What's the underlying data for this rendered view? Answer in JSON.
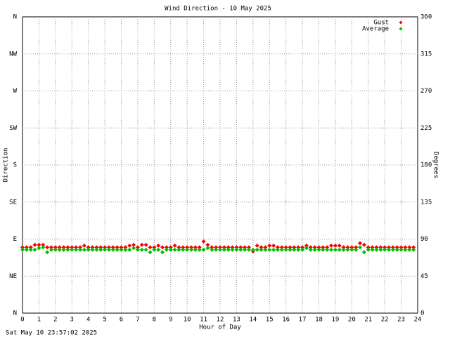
{
  "chart_data": {
    "type": "scatter",
    "title": "Wind Direction - 10 May 2025",
    "x_label": "Hour of Day",
    "y_label": "Direction",
    "y2_label": "Degrees",
    "footer": "Sat May 10 23:57:02 2025",
    "xlim": [
      0,
      24
    ],
    "xticks": [
      0,
      1,
      2,
      3,
      4,
      5,
      6,
      7,
      8,
      9,
      10,
      11,
      12,
      13,
      14,
      15,
      16,
      17,
      18,
      19,
      20,
      21,
      22,
      23,
      24
    ],
    "ylim": [
      0,
      360
    ],
    "yticks": [
      {
        "value": 0,
        "label": "N"
      },
      {
        "value": 45,
        "label": "NE"
      },
      {
        "value": 90,
        "label": "E"
      },
      {
        "value": 135,
        "label": "SE"
      },
      {
        "value": 180,
        "label": "S"
      },
      {
        "value": 225,
        "label": "SW"
      },
      {
        "value": 270,
        "label": "W"
      },
      {
        "value": 315,
        "label": "NW"
      },
      {
        "value": 360,
        "label": "N"
      }
    ],
    "y2lim": [
      0,
      360
    ],
    "y2ticks": [
      0,
      45,
      90,
      135,
      180,
      225,
      270,
      315,
      360
    ],
    "grid": true,
    "legend": "top-right",
    "x": [
      0,
      0.25,
      0.5,
      0.75,
      1,
      1.25,
      1.5,
      1.75,
      2,
      2.25,
      2.5,
      2.75,
      3,
      3.25,
      3.5,
      3.75,
      4,
      4.25,
      4.5,
      4.75,
      5,
      5.25,
      5.5,
      5.75,
      6,
      6.25,
      6.5,
      6.75,
      7,
      7.25,
      7.5,
      7.75,
      8,
      8.25,
      8.5,
      8.75,
      9,
      9.25,
      9.5,
      9.75,
      10,
      10.25,
      10.5,
      10.75,
      11,
      11.25,
      11.5,
      11.75,
      12,
      12.25,
      12.5,
      12.75,
      13,
      13.25,
      13.5,
      13.75,
      14,
      14.25,
      14.5,
      14.75,
      15,
      15.25,
      15.5,
      15.75,
      16,
      16.25,
      16.5,
      16.75,
      17,
      17.25,
      17.5,
      17.75,
      18,
      18.25,
      18.5,
      18.75,
      19,
      19.25,
      19.5,
      19.75,
      20,
      20.25,
      20.5,
      20.75,
      21,
      21.25,
      21.5,
      21.75,
      22,
      22.25,
      22.5,
      22.75,
      23,
      23.25,
      23.5,
      23.75
    ],
    "series": [
      {
        "name": "Gust",
        "color": "#ff0000",
        "values": [
          80,
          80,
          80,
          83,
          83,
          83,
          80,
          80,
          80,
          80,
          80,
          80,
          80,
          80,
          80,
          82,
          80,
          80,
          80,
          80,
          80,
          80,
          80,
          80,
          80,
          80,
          82,
          83,
          80,
          83,
          83,
          80,
          80,
          82,
          80,
          80,
          80,
          82,
          80,
          80,
          80,
          80,
          80,
          80,
          87,
          83,
          80,
          80,
          80,
          80,
          80,
          80,
          80,
          80,
          80,
          80,
          75,
          82,
          80,
          80,
          82,
          82,
          80,
          80,
          80,
          80,
          80,
          80,
          80,
          82,
          80,
          80,
          80,
          80,
          80,
          82,
          82,
          82,
          80,
          80,
          80,
          80,
          85,
          83,
          80,
          80,
          80,
          80,
          80,
          80,
          80,
          80,
          80,
          80,
          80,
          80
        ]
      },
      {
        "name": "Average",
        "color": "#00c000",
        "values": [
          77,
          77,
          77,
          77,
          79,
          80,
          74,
          77,
          77,
          77,
          77,
          77,
          77,
          77,
          77,
          77,
          77,
          77,
          77,
          77,
          77,
          77,
          77,
          77,
          77,
          77,
          77,
          79,
          77,
          77,
          77,
          74,
          77,
          77,
          74,
          77,
          77,
          77,
          77,
          77,
          77,
          77,
          77,
          77,
          77,
          79,
          77,
          77,
          77,
          77,
          77,
          77,
          77,
          77,
          77,
          77,
          77,
          77,
          77,
          77,
          77,
          77,
          77,
          77,
          77,
          77,
          77,
          77,
          77,
          79,
          77,
          77,
          77,
          77,
          77,
          77,
          77,
          77,
          77,
          77,
          77,
          77,
          80,
          74,
          77,
          77,
          77,
          77,
          77,
          77,
          77,
          77,
          77,
          77,
          77,
          77
        ]
      }
    ]
  }
}
